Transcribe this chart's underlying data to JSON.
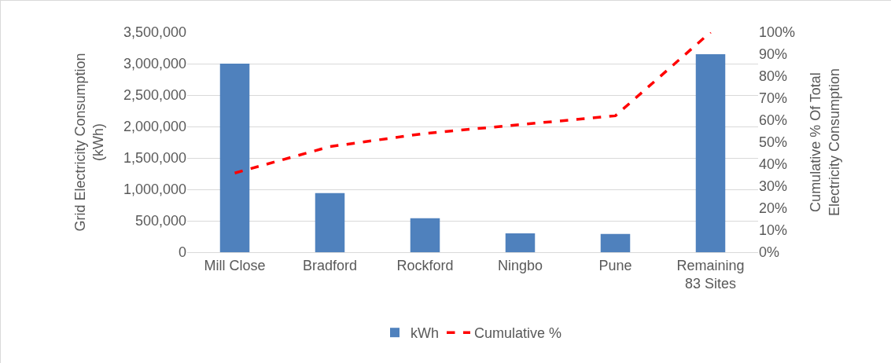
{
  "chart_data": {
    "type": "bar",
    "categories": [
      "Mill Close",
      "Bradford",
      "Rockford",
      "Ningbo",
      "Pune",
      "Remaining 83 Sites"
    ],
    "series": [
      {
        "name": "kWh",
        "color": "#4f81bd",
        "values": [
          3000000,
          940000,
          540000,
          300000,
          290000,
          3150000
        ]
      },
      {
        "name": "Cumulative %",
        "type": "line",
        "axis": "y2",
        "color": "#ff0000",
        "line_style": "dashed",
        "marker": "none",
        "values": [
          36,
          48,
          54,
          58,
          62,
          100
        ]
      }
    ],
    "ylabel": "Grid Electricity Consumption (kWh)",
    "y2label": "Cumulative % Of Total Electricity Consumption",
    "ylim": [
      0,
      3500000
    ],
    "yticks": [
      {
        "value": 0,
        "label": "0"
      },
      {
        "value": 500000,
        "label": "500,000"
      },
      {
        "value": 1000000,
        "label": "1,000,000"
      },
      {
        "value": 1500000,
        "label": "1,500,000"
      },
      {
        "value": 2000000,
        "label": "2,000,000"
      },
      {
        "value": 2500000,
        "label": "2,500,000"
      },
      {
        "value": 3000000,
        "label": "3,000,000"
      },
      {
        "value": 3500000,
        "label": "3,500,000"
      }
    ],
    "y2lim": [
      0,
      100
    ],
    "y2ticks": [
      {
        "value": 0,
        "label": "0%"
      },
      {
        "value": 10,
        "label": "10%"
      },
      {
        "value": 20,
        "label": "20%"
      },
      {
        "value": 30,
        "label": "30%"
      },
      {
        "value": 40,
        "label": "40%"
      },
      {
        "value": 50,
        "label": "50%"
      },
      {
        "value": 60,
        "label": "60%"
      },
      {
        "value": 70,
        "label": "70%"
      },
      {
        "value": 80,
        "label": "80%"
      },
      {
        "value": 90,
        "label": "90%"
      },
      {
        "value": 100,
        "label": "100%"
      }
    ],
    "grid": "y",
    "legend": "bottom"
  }
}
